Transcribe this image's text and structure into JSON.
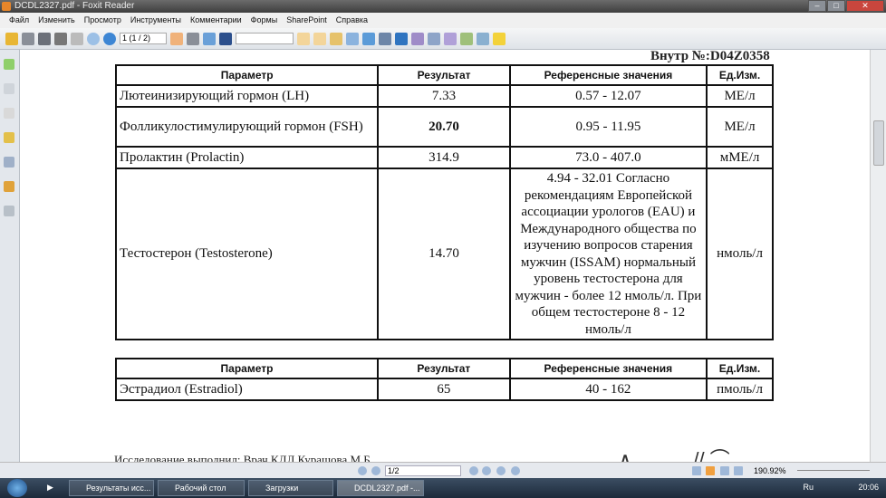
{
  "window": {
    "title": "DCDL2327.pdf - Foxit Reader"
  },
  "menu": [
    "Файл",
    "Изменить",
    "Просмотр",
    "Инструменты",
    "Комментарии",
    "Формы",
    "SharePoint",
    "Справка"
  ],
  "toolbar": {
    "page_value": "1 (1 / 2)",
    "search_value": ""
  },
  "document": {
    "doc_number": "Внутр №:D04Z0358",
    "table1": {
      "headers": [
        "Параметр",
        "Результат",
        "Референсные значения",
        "Ед.Изм."
      ],
      "rows": [
        {
          "param": "Лютеинизирующий гормон (LH)",
          "result": "7.33",
          "ref": "0.57 - 12.07",
          "unit": "МЕ/л"
        },
        {
          "param": "Фолликулостимулирующий гормон (FSH)",
          "result": "20.70",
          "ref": "0.95 - 11.95",
          "unit": "МЕ/л"
        },
        {
          "param": "Пролактин (Prolactin)",
          "result": "314.9",
          "ref": "73.0 - 407.0",
          "unit": "мМЕ/л"
        },
        {
          "param": "Тестостерон (Testosterone)",
          "result": "14.70",
          "ref": "4.94 - 32.01 Согласно рекомендациям Европейской ассоциации урологов (EAU) и Международного общества по изучению вопросов старения мужчин (ISSAM) нормальный уровень тестостерона для мужчин - более 12 нмоль/л. При общем тестостероне 8 - 12 нмоль/л",
          "unit": "нмоль/л"
        }
      ]
    },
    "table2": {
      "headers": [
        "Параметр",
        "Результат",
        "Референсные значения",
        "Ед.Изм."
      ],
      "rows": [
        {
          "param": "Эстрадиол (Estradiol)",
          "result": "65",
          "ref": "40 - 162",
          "unit": "пмоль/л"
        }
      ]
    },
    "footer": "Исследование выполнил: Врач КДЛ Курашова М.Б."
  },
  "statusbar": {
    "page": "1/2",
    "zoom": "190.92%"
  },
  "taskbar": {
    "tasks": [
      "Результаты исс...",
      "Рабочий стол",
      "Загрузки",
      "DCDL2327.pdf -..."
    ],
    "lang": "Ru",
    "time": "20:06"
  }
}
